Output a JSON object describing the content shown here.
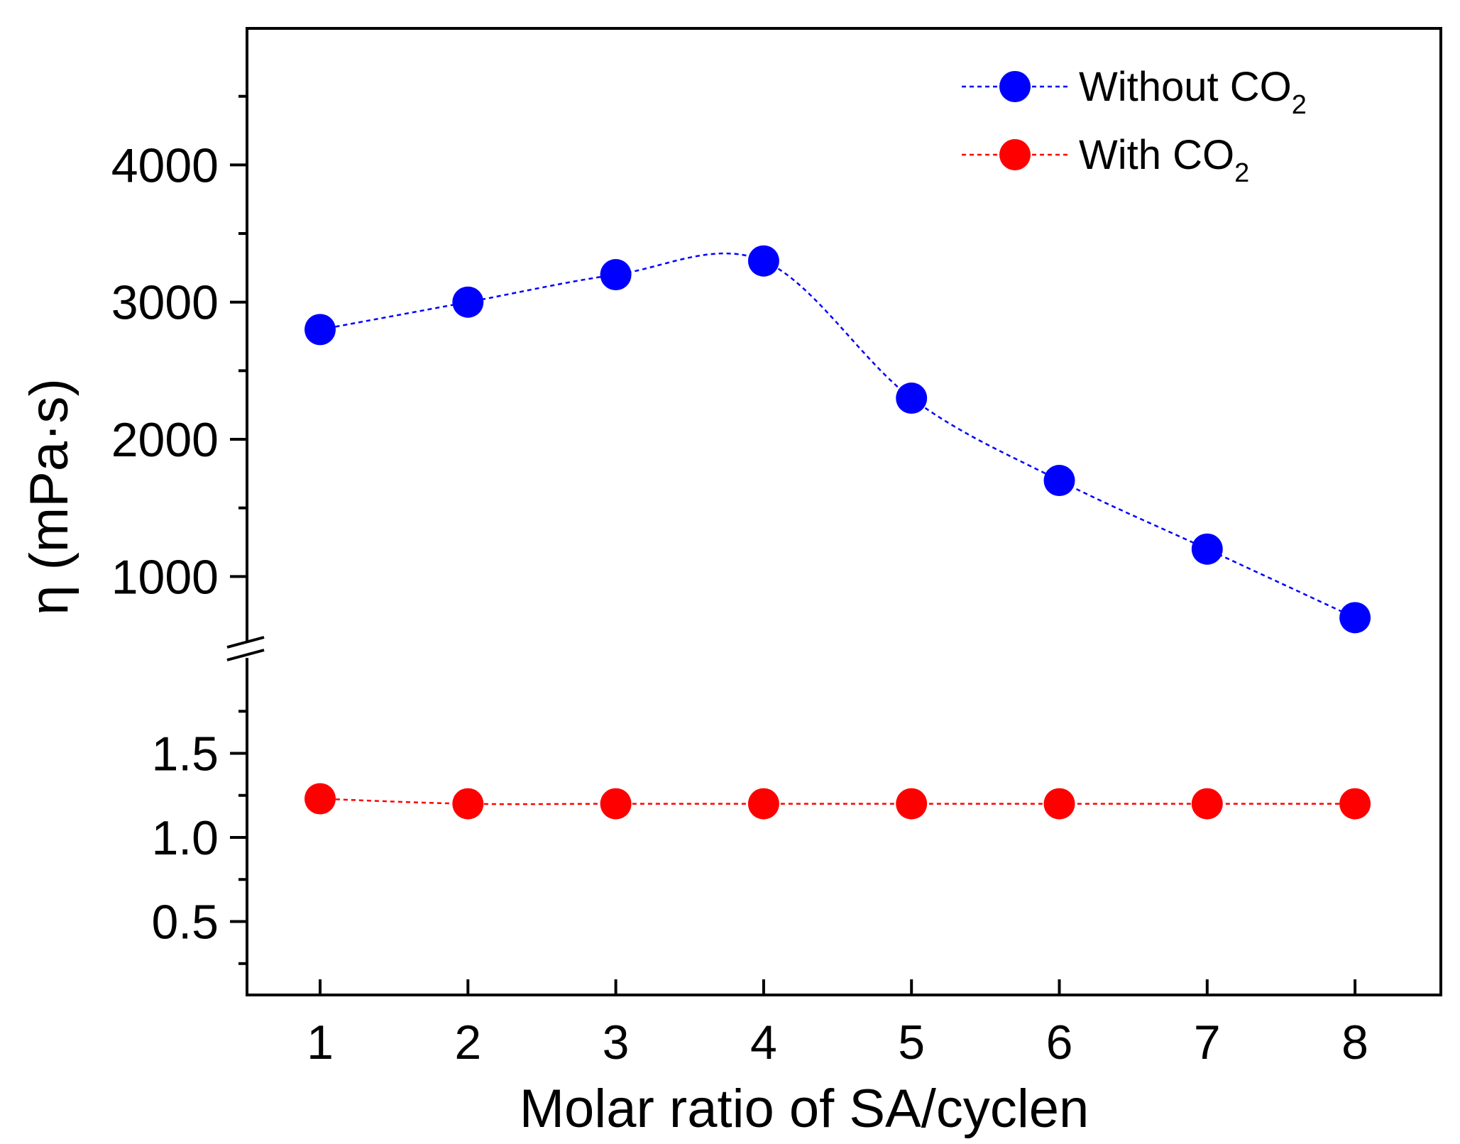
{
  "chart_data": {
    "type": "line",
    "xlabel": "Molar ratio of SA/cyclen",
    "ylabel": "η (mPa·s)",
    "x": [
      1,
      2,
      3,
      4,
      5,
      6,
      7,
      8
    ],
    "x_ticks": [
      "1",
      "2",
      "3",
      "4",
      "5",
      "6",
      "7",
      "8"
    ],
    "xlim": [
      0.5,
      8.6
    ],
    "y_axis_break": true,
    "y_upper_range": [
      500,
      5000
    ],
    "y_upper_ticks": [
      "1000",
      "2000",
      "3000",
      "4000"
    ],
    "y_lower_range": [
      0,
      1.9
    ],
    "y_lower_ticks": [
      "0.5",
      "1.0",
      "1.5"
    ],
    "series": [
      {
        "name": "Without CO",
        "name_subscript": "2",
        "segment": "upper",
        "color": "#0000ff",
        "values": [
          2800,
          3000,
          3200,
          3300,
          2300,
          1700,
          1200,
          700
        ]
      },
      {
        "name": "With CO",
        "name_subscript": "2",
        "segment": "lower",
        "color": "#ff0000",
        "values": [
          1.23,
          1.2,
          1.2,
          1.2,
          1.2,
          1.2,
          1.2,
          1.2
        ]
      }
    ],
    "legend": "top-right",
    "grid": false
  }
}
